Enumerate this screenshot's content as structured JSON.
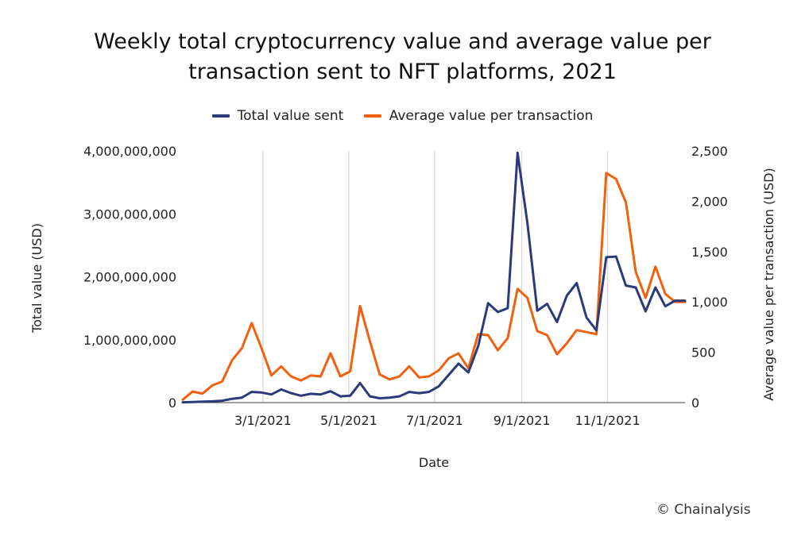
{
  "title_line1": "Weekly total cryptocurrency value and average value per",
  "title_line2": "transaction sent to NFT platforms, 2021",
  "copyright": "© Chainalysis",
  "chart_data": {
    "type": "line",
    "title": "Weekly total cryptocurrency value and average value per transaction sent to NFT platforms, 2021",
    "xlabel": "Date",
    "ylabel_left": "Total value (USD)",
    "ylabel_right": "Average value per transaction (USD)",
    "xlim": [
      "2021-01-03",
      "2021-12-26"
    ],
    "x_ticks": [
      "2021-03-01",
      "2021-05-01",
      "2021-07-01",
      "2021-09-01",
      "2021-11-01"
    ],
    "x_tick_labels": [
      "3/1/2021",
      "5/1/2021",
      "7/1/2021",
      "9/1/2021",
      "11/1/2021"
    ],
    "ylim_left": [
      0,
      4000000000
    ],
    "y_ticks_left": [
      "0",
      "1,000,000,000",
      "2,000,000,000",
      "3,000,000,000",
      "4,000,000,000"
    ],
    "ylim_right": [
      0,
      2500
    ],
    "y_ticks_right": [
      "0",
      "500",
      "1,000",
      "1,500",
      "2,000",
      "2,500"
    ],
    "grid": "vertical at x ticks",
    "legend_position": "top",
    "x": [
      "2021-01-03",
      "2021-01-10",
      "2021-01-17",
      "2021-01-24",
      "2021-01-31",
      "2021-02-07",
      "2021-02-14",
      "2021-02-21",
      "2021-02-28",
      "2021-03-07",
      "2021-03-14",
      "2021-03-21",
      "2021-03-28",
      "2021-04-04",
      "2021-04-11",
      "2021-04-18",
      "2021-04-25",
      "2021-05-02",
      "2021-05-09",
      "2021-05-16",
      "2021-05-23",
      "2021-05-30",
      "2021-06-06",
      "2021-06-13",
      "2021-06-20",
      "2021-06-27",
      "2021-07-04",
      "2021-07-11",
      "2021-07-18",
      "2021-07-25",
      "2021-08-01",
      "2021-08-08",
      "2021-08-15",
      "2021-08-22",
      "2021-08-29",
      "2021-09-05",
      "2021-09-12",
      "2021-09-19",
      "2021-09-26",
      "2021-10-03",
      "2021-10-10",
      "2021-10-17",
      "2021-10-24",
      "2021-10-31",
      "2021-11-07",
      "2021-11-14",
      "2021-11-21",
      "2021-11-28",
      "2021-12-05",
      "2021-12-12",
      "2021-12-19",
      "2021-12-26"
    ],
    "series": [
      {
        "name": "Total value sent",
        "axis": "left",
        "color": "#2b3a7a",
        "values": [
          5000000,
          10000000,
          15000000,
          20000000,
          30000000,
          60000000,
          80000000,
          170000000,
          160000000,
          130000000,
          210000000,
          150000000,
          110000000,
          140000000,
          130000000,
          180000000,
          100000000,
          110000000,
          310000000,
          100000000,
          70000000,
          80000000,
          100000000,
          170000000,
          150000000,
          170000000,
          260000000,
          440000000,
          620000000,
          480000000,
          900000000,
          1580000000,
          1440000000,
          1500000000,
          3970000000,
          2850000000,
          1460000000,
          1570000000,
          1280000000,
          1700000000,
          1900000000,
          1350000000,
          1150000000,
          2310000000,
          2320000000,
          1860000000,
          1830000000,
          1450000000,
          1830000000,
          1530000000,
          1620000000,
          1620000000
        ]
      },
      {
        "name": "Average value per transaction",
        "axis": "right",
        "color": "#f0600f",
        "values": [
          30,
          110,
          90,
          170,
          210,
          420,
          540,
          790,
          540,
          270,
          360,
          260,
          220,
          270,
          260,
          490,
          260,
          310,
          960,
          610,
          280,
          230,
          260,
          360,
          250,
          260,
          320,
          440,
          490,
          340,
          680,
          670,
          520,
          640,
          1130,
          1040,
          710,
          670,
          480,
          590,
          720,
          700,
          680,
          2280,
          2220,
          1990,
          1300,
          1040,
          1350,
          1080,
          1000,
          1000
        ]
      }
    ]
  }
}
